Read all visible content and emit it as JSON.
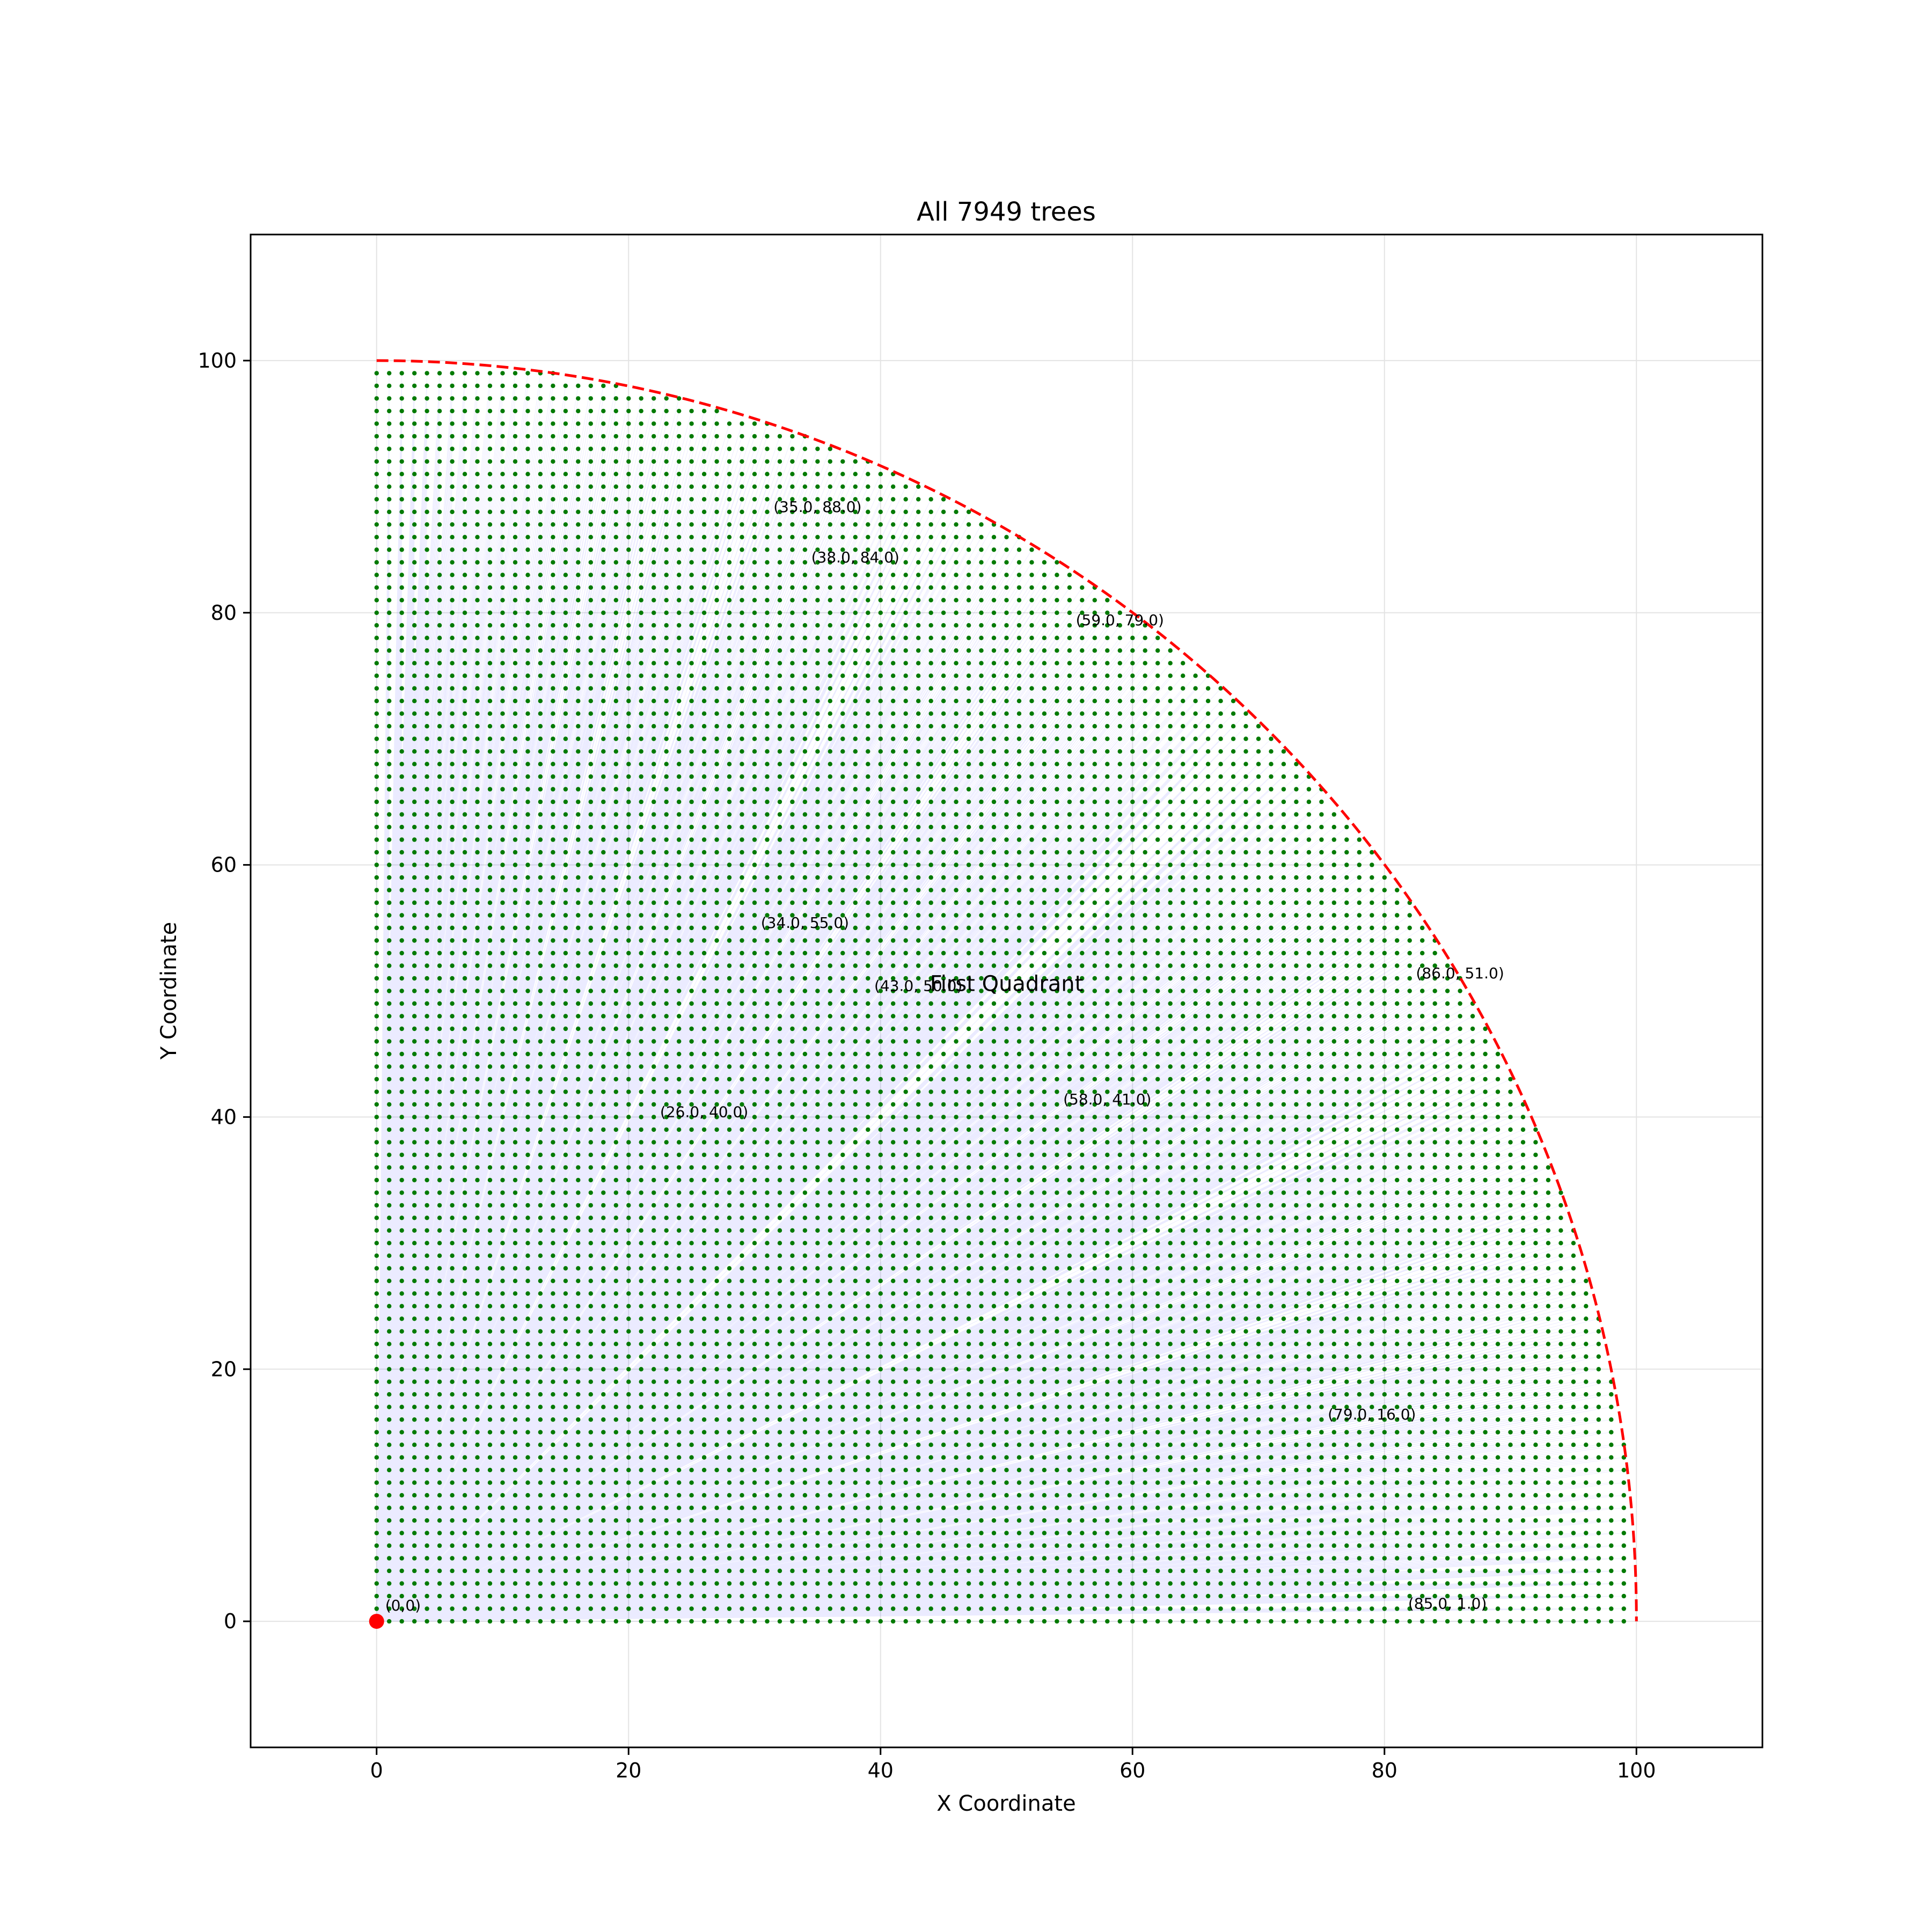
{
  "chart_data": {
    "type": "scatter",
    "title": "All 7949 trees",
    "xlabel": "X Coordinate",
    "ylabel": "Y Coordinate",
    "xlim": [
      -10,
      110
    ],
    "ylim": [
      -10,
      110
    ],
    "xticks": [
      0,
      20,
      40,
      60,
      80,
      100
    ],
    "yticks": [
      0,
      20,
      40,
      60,
      80,
      100
    ],
    "grid": true,
    "origin": {
      "x": 0,
      "y": 0,
      "label": "(0,0)",
      "color": "#ff0000"
    },
    "trees": {
      "x_range": [
        0,
        99
      ],
      "y_range": [
        0,
        99
      ],
      "step": 1,
      "condition": "x^2 + y^2 < 100^2",
      "count": 7949,
      "color": "#007a00"
    },
    "sight_lines": {
      "from": [
        0,
        0
      ],
      "to": "every tree",
      "color": "#1f1fff"
    },
    "boundary": {
      "shape": "quarter circle",
      "radius": 100,
      "center": [
        0,
        0
      ],
      "style": "dashed",
      "color": "#ff0000"
    },
    "region_label": {
      "text": "First Quadrant",
      "x": 50,
      "y": 50
    },
    "annotations": [
      {
        "text": "(35.0, 88.0)",
        "x": 35,
        "y": 88
      },
      {
        "text": "(38.0, 84.0)",
        "x": 38,
        "y": 84
      },
      {
        "text": "(59.0, 79.0)",
        "x": 59,
        "y": 79
      },
      {
        "text": "(34.0, 55.0)",
        "x": 34,
        "y": 55
      },
      {
        "text": "(43.0, 50.0)",
        "x": 43,
        "y": 50
      },
      {
        "text": "(86.0, 51.0)",
        "x": 86,
        "y": 51
      },
      {
        "text": "(58.0, 41.0)",
        "x": 58,
        "y": 41
      },
      {
        "text": "(26.0, 40.0)",
        "x": 26,
        "y": 40
      },
      {
        "text": "(79.0, 16.0)",
        "x": 79,
        "y": 16
      },
      {
        "text": "(85.0, 1.0)",
        "x": 85,
        "y": 1
      }
    ]
  }
}
